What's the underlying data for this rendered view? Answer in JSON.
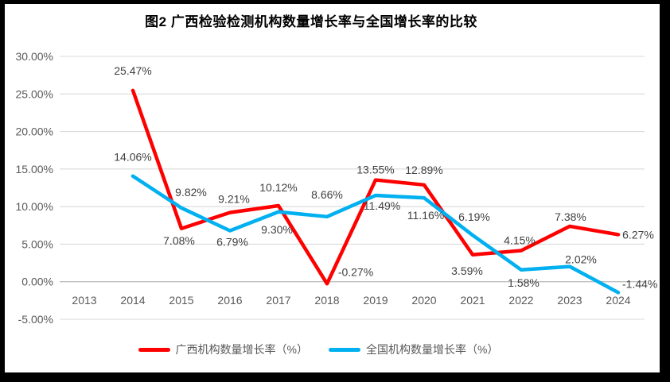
{
  "chart_data": {
    "type": "line",
    "title": "图2 广西检验检测机构数量增长率与全国增长率的比较",
    "categories": [
      "2013",
      "2014",
      "2015",
      "2016",
      "2017",
      "2018",
      "2019",
      "2020",
      "2021",
      "2022",
      "2023",
      "2024"
    ],
    "series": [
      {
        "name": "广西机构数量增长率（%）",
        "color": "#FF0000",
        "values": [
          null,
          25.47,
          7.08,
          9.21,
          10.12,
          -0.27,
          13.55,
          12.89,
          3.59,
          4.15,
          7.38,
          6.27
        ]
      },
      {
        "name": "全国机构数量增长率（%）",
        "color": "#00B0F0",
        "values": [
          null,
          14.06,
          9.82,
          6.79,
          9.3,
          8.66,
          11.49,
          11.16,
          6.19,
          1.58,
          2.02,
          -1.44
        ]
      }
    ],
    "y_axis": {
      "min": -5,
      "max": 30,
      "step": 5,
      "tick_labels": [
        "30.00%",
        "25.00%",
        "20.00%",
        "15.00%",
        "10.00%",
        "5.00%",
        "0.00%",
        "-5.00%"
      ]
    },
    "x_axis": {
      "tick_labels": [
        "2013",
        "2014",
        "2015",
        "2016",
        "2017",
        "2018",
        "2019",
        "2020",
        "2021",
        "2022",
        "2023",
        "2024"
      ]
    },
    "data_label_suffix": "%",
    "legend_position": "bottom",
    "grid": true
  },
  "style": {
    "grid_color": "#D9D9D9",
    "zero_line_color": "#BFBFBF",
    "axis_text_color": "#595959",
    "data_label_color": "#404040",
    "frame_color": "#000000",
    "background": "#FFFFFF"
  }
}
